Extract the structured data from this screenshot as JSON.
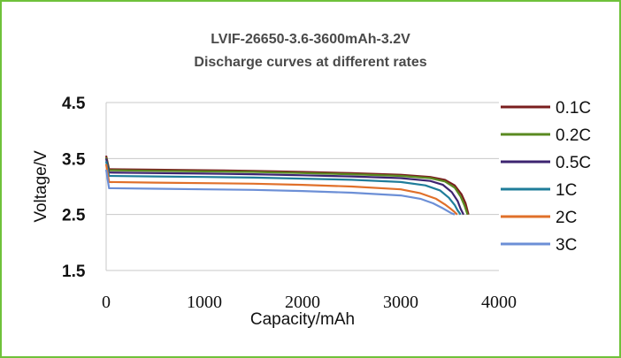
{
  "chart_data": {
    "type": "line",
    "title": "LVIF-26650-3.6-3600mAh-3.2V",
    "subtitle": "Discharge curves at different rates",
    "xlabel": "Capacity/mAh",
    "ylabel": "Voltage/V",
    "xlim": [
      0,
      4000
    ],
    "ylim": [
      1.5,
      4.5
    ],
    "x_ticks": [
      "0",
      "1000",
      "2000",
      "3000",
      "4000"
    ],
    "y_ticks": [
      "1.5",
      "2.5",
      "3.5",
      "4.5"
    ],
    "grid": true,
    "legend_position": "right",
    "series": [
      {
        "name": "0.1C",
        "color": "#7a1f1f",
        "x": [
          0,
          30,
          500,
          1000,
          1500,
          2000,
          2500,
          3000,
          3300,
          3450,
          3550,
          3620,
          3660,
          3690
        ],
        "y": [
          3.55,
          3.31,
          3.3,
          3.29,
          3.28,
          3.26,
          3.24,
          3.21,
          3.17,
          3.12,
          3.02,
          2.86,
          2.7,
          2.5
        ]
      },
      {
        "name": "0.2C",
        "color": "#5a8a20",
        "x": [
          0,
          30,
          500,
          1000,
          1500,
          2000,
          2500,
          3000,
          3300,
          3450,
          3550,
          3610,
          3650,
          3680
        ],
        "y": [
          3.52,
          3.29,
          3.28,
          3.27,
          3.26,
          3.24,
          3.22,
          3.19,
          3.15,
          3.09,
          2.98,
          2.82,
          2.66,
          2.5
        ]
      },
      {
        "name": "0.5C",
        "color": "#3d2470",
        "x": [
          0,
          30,
          500,
          1000,
          1500,
          2000,
          2500,
          3000,
          3300,
          3430,
          3520,
          3580,
          3610,
          3640
        ],
        "y": [
          3.5,
          3.25,
          3.24,
          3.23,
          3.22,
          3.2,
          3.18,
          3.15,
          3.1,
          3.03,
          2.9,
          2.74,
          2.6,
          2.5
        ]
      },
      {
        "name": "1C",
        "color": "#1f7d9a",
        "x": [
          0,
          30,
          500,
          1000,
          1500,
          2000,
          2500,
          3000,
          3250,
          3400,
          3490,
          3550,
          3580,
          3610
        ],
        "y": [
          3.45,
          3.19,
          3.18,
          3.17,
          3.16,
          3.14,
          3.12,
          3.08,
          3.02,
          2.93,
          2.8,
          2.67,
          2.57,
          2.5
        ]
      },
      {
        "name": "2C",
        "color": "#e0702a",
        "x": [
          0,
          30,
          500,
          1000,
          1500,
          2000,
          2500,
          3000,
          3200,
          3360,
          3450,
          3510,
          3545,
          3575
        ],
        "y": [
          3.4,
          3.08,
          3.07,
          3.06,
          3.05,
          3.03,
          3.0,
          2.95,
          2.88,
          2.78,
          2.68,
          2.6,
          2.55,
          2.5
        ]
      },
      {
        "name": "3C",
        "color": "#6c8fd6",
        "x": [
          0,
          30,
          500,
          1000,
          1500,
          2000,
          2500,
          3000,
          3200,
          3330,
          3420,
          3480,
          3520,
          3550
        ],
        "y": [
          3.3,
          2.97,
          2.96,
          2.95,
          2.94,
          2.92,
          2.89,
          2.84,
          2.78,
          2.7,
          2.62,
          2.56,
          2.52,
          2.5
        ]
      }
    ]
  }
}
